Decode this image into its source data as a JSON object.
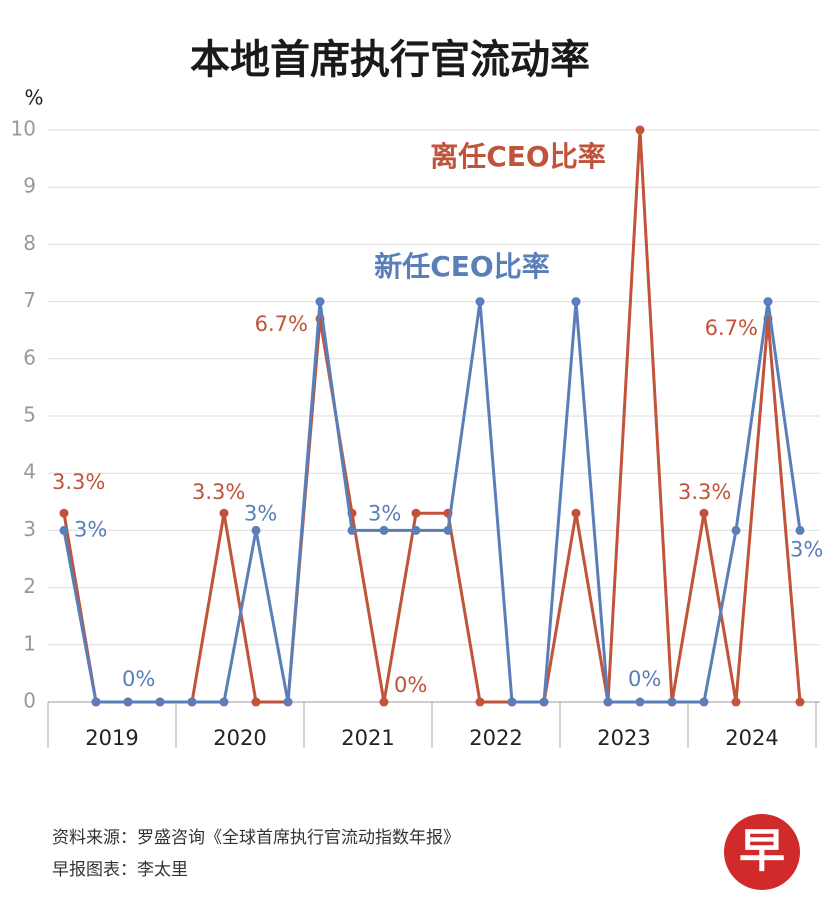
{
  "chart_data": {
    "type": "line",
    "title": "本地首席执行官流动率",
    "y_label": "%",
    "categories": [
      null,
      null,
      null,
      null,
      null,
      null,
      null,
      null,
      null,
      null,
      null,
      null,
      null,
      null,
      null,
      null,
      null,
      null,
      null,
      null,
      null,
      null,
      null,
      null
    ],
    "groups": [
      "2019",
      "2020",
      "2021",
      "2022",
      "2023",
      "2024"
    ],
    "ylim": [
      0,
      10
    ],
    "yticks": [
      0,
      1,
      2,
      3,
      4,
      5,
      6,
      7,
      8,
      9,
      10
    ],
    "grid": true,
    "series": [
      {
        "name": "离任CEO比率",
        "color": "#c0533a",
        "values": [
          3.3,
          0,
          0,
          0,
          0,
          3.3,
          0,
          0,
          6.7,
          3.3,
          0,
          3.3,
          3.3,
          0,
          0,
          0,
          3.3,
          0,
          10,
          0,
          3.3,
          0,
          6.7,
          0
        ],
        "value_labels": [
          "3.3%",
          null,
          null,
          null,
          null,
          "3.3%",
          null,
          null,
          "6.7%",
          null,
          "0%",
          null,
          null,
          null,
          null,
          null,
          null,
          null,
          null,
          null,
          "3.3%",
          null,
          "6.7%",
          null
        ]
      },
      {
        "name": "新任CEO比率",
        "color": "#5a7fb8",
        "values": [
          3,
          0,
          0,
          0,
          0,
          0,
          3,
          0,
          7,
          3,
          3,
          3,
          3,
          7,
          0,
          0,
          7,
          0,
          0,
          0,
          0,
          3,
          7,
          3
        ],
        "value_labels": [
          "3%",
          null,
          "0%",
          null,
          null,
          null,
          "3%",
          null,
          null,
          null,
          "3%",
          null,
          null,
          null,
          null,
          null,
          null,
          null,
          "0%",
          null,
          null,
          null,
          null,
          "3%"
        ]
      }
    ],
    "source": "资料来源：罗盛咨询《全球首席执行官流动指数年报》",
    "credit": "早报图表：李太里"
  }
}
